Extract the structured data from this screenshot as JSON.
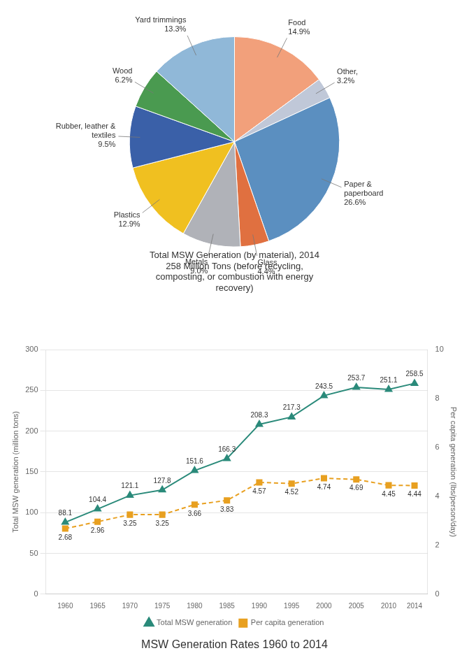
{
  "chart_data": [
    {
      "type": "pie",
      "title": "Total MSW Generation (by material), 2014\n258 Million Tons (before recycling,\ncomposting, or combustion with energy\nrecovery)",
      "categories": [
        "Food",
        "Other,",
        "Paper &\npaperboard",
        "Glass",
        "Metals",
        "Plastics",
        "Rubber, leather &\ntextiles",
        "Wood",
        "Yard trimmings"
      ],
      "values": [
        14.9,
        3.2,
        26.6,
        4.4,
        9.0,
        12.9,
        9.5,
        6.2,
        13.3
      ],
      "value_labels": [
        "14.9%",
        "3.2%",
        "26.6%",
        "4.4%",
        "9.0%",
        "12.9%",
        "9.5%",
        "6.2%",
        "13.3%"
      ],
      "colors": [
        "#f2a07b",
        "#c0c8d8",
        "#5b8fc0",
        "#e07040",
        "#b0b2b8",
        "#f0c020",
        "#3a60a8",
        "#4a9a50",
        "#90b8d8"
      ],
      "data_labels": true
    },
    {
      "type": "line",
      "title": "MSW Generation Rates 1960 to 2014",
      "x": [
        1960,
        1965,
        1970,
        1975,
        1980,
        1985,
        1990,
        1995,
        2000,
        2005,
        2010,
        2014
      ],
      "xlim": [
        1957,
        2016
      ],
      "xticks": [
        1960,
        1965,
        1970,
        1975,
        1980,
        1985,
        1990,
        1995,
        2000,
        2005,
        2010,
        2014
      ],
      "ylim": [
        0,
        300
      ],
      "yticks": [
        0,
        50,
        100,
        150,
        200,
        250,
        300
      ],
      "y2lim": [
        0,
        10
      ],
      "y2ticks": [
        0,
        2,
        4,
        6,
        8,
        10
      ],
      "ylabel": "Total MSW generation (million tons)",
      "y2label": "Per capita generation (lbs/person/day)",
      "grid": "y",
      "legend": "bottom",
      "data_labels": true,
      "series": [
        {
          "name": "Total MSW generation",
          "color": "#2a8a7a",
          "marker": "triangle",
          "line_style": "solid",
          "values": [
            88.1,
            104.4,
            121.1,
            127.8,
            151.6,
            166.3,
            208.3,
            217.3,
            243.5,
            253.7,
            251.1,
            258.5
          ]
        },
        {
          "name": "Per capita generation",
          "color": "#e8a020",
          "marker": "square",
          "line_style": "dashed",
          "axis": "y2",
          "values": [
            2.68,
            2.96,
            3.25,
            3.25,
            3.66,
            3.83,
            4.57,
            4.52,
            4.74,
            4.69,
            4.45,
            4.44
          ]
        }
      ]
    }
  ]
}
